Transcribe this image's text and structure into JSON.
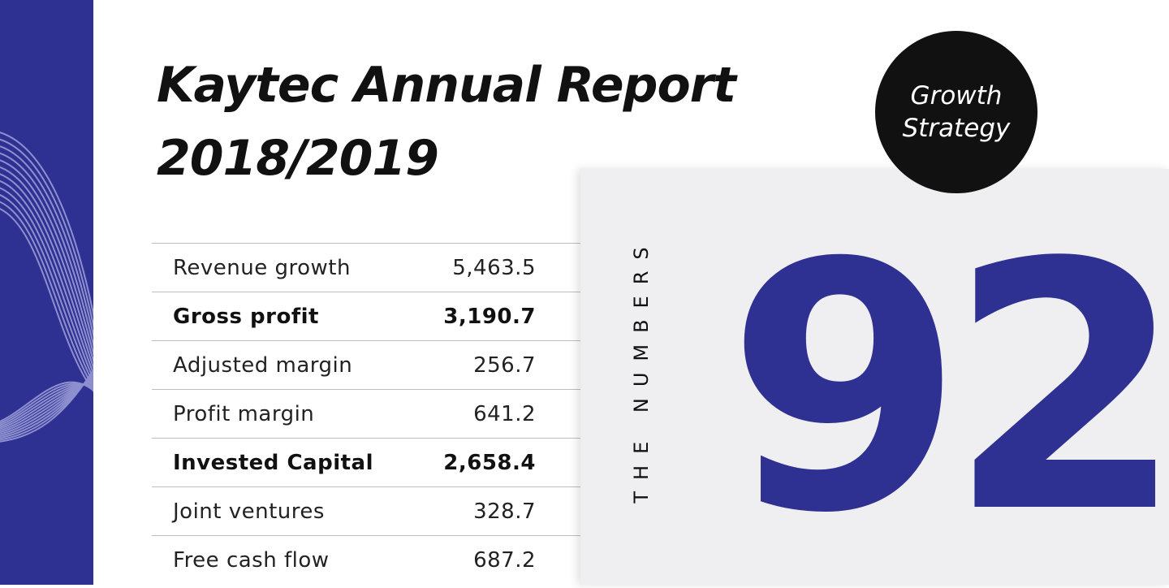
{
  "colors": {
    "accent": "#2e3192",
    "panel": "#efeff2",
    "badge": "#111111"
  },
  "title": {
    "line1": "Kaytec Annual Report",
    "line2": "2018/2019"
  },
  "badge": {
    "line1": "Growth",
    "line2": "Strategy"
  },
  "panel": {
    "vertical_label": "THE NUMBERS",
    "big_number": "92"
  },
  "table": {
    "rows": [
      {
        "label": "Revenue growth",
        "value": "5,463.5",
        "bold": false
      },
      {
        "label": "Gross profit",
        "value": "3,190.7",
        "bold": true
      },
      {
        "label": "Adjusted margin",
        "value": "256.7",
        "bold": false
      },
      {
        "label": "Profit margin",
        "value": "641.2",
        "bold": false
      },
      {
        "label": "Invested Capital",
        "value": "2,658.4",
        "bold": true
      },
      {
        "label": "Joint ventures",
        "value": "328.7",
        "bold": false
      },
      {
        "label": "Free cash flow",
        "value": "687.2",
        "bold": false
      }
    ]
  }
}
